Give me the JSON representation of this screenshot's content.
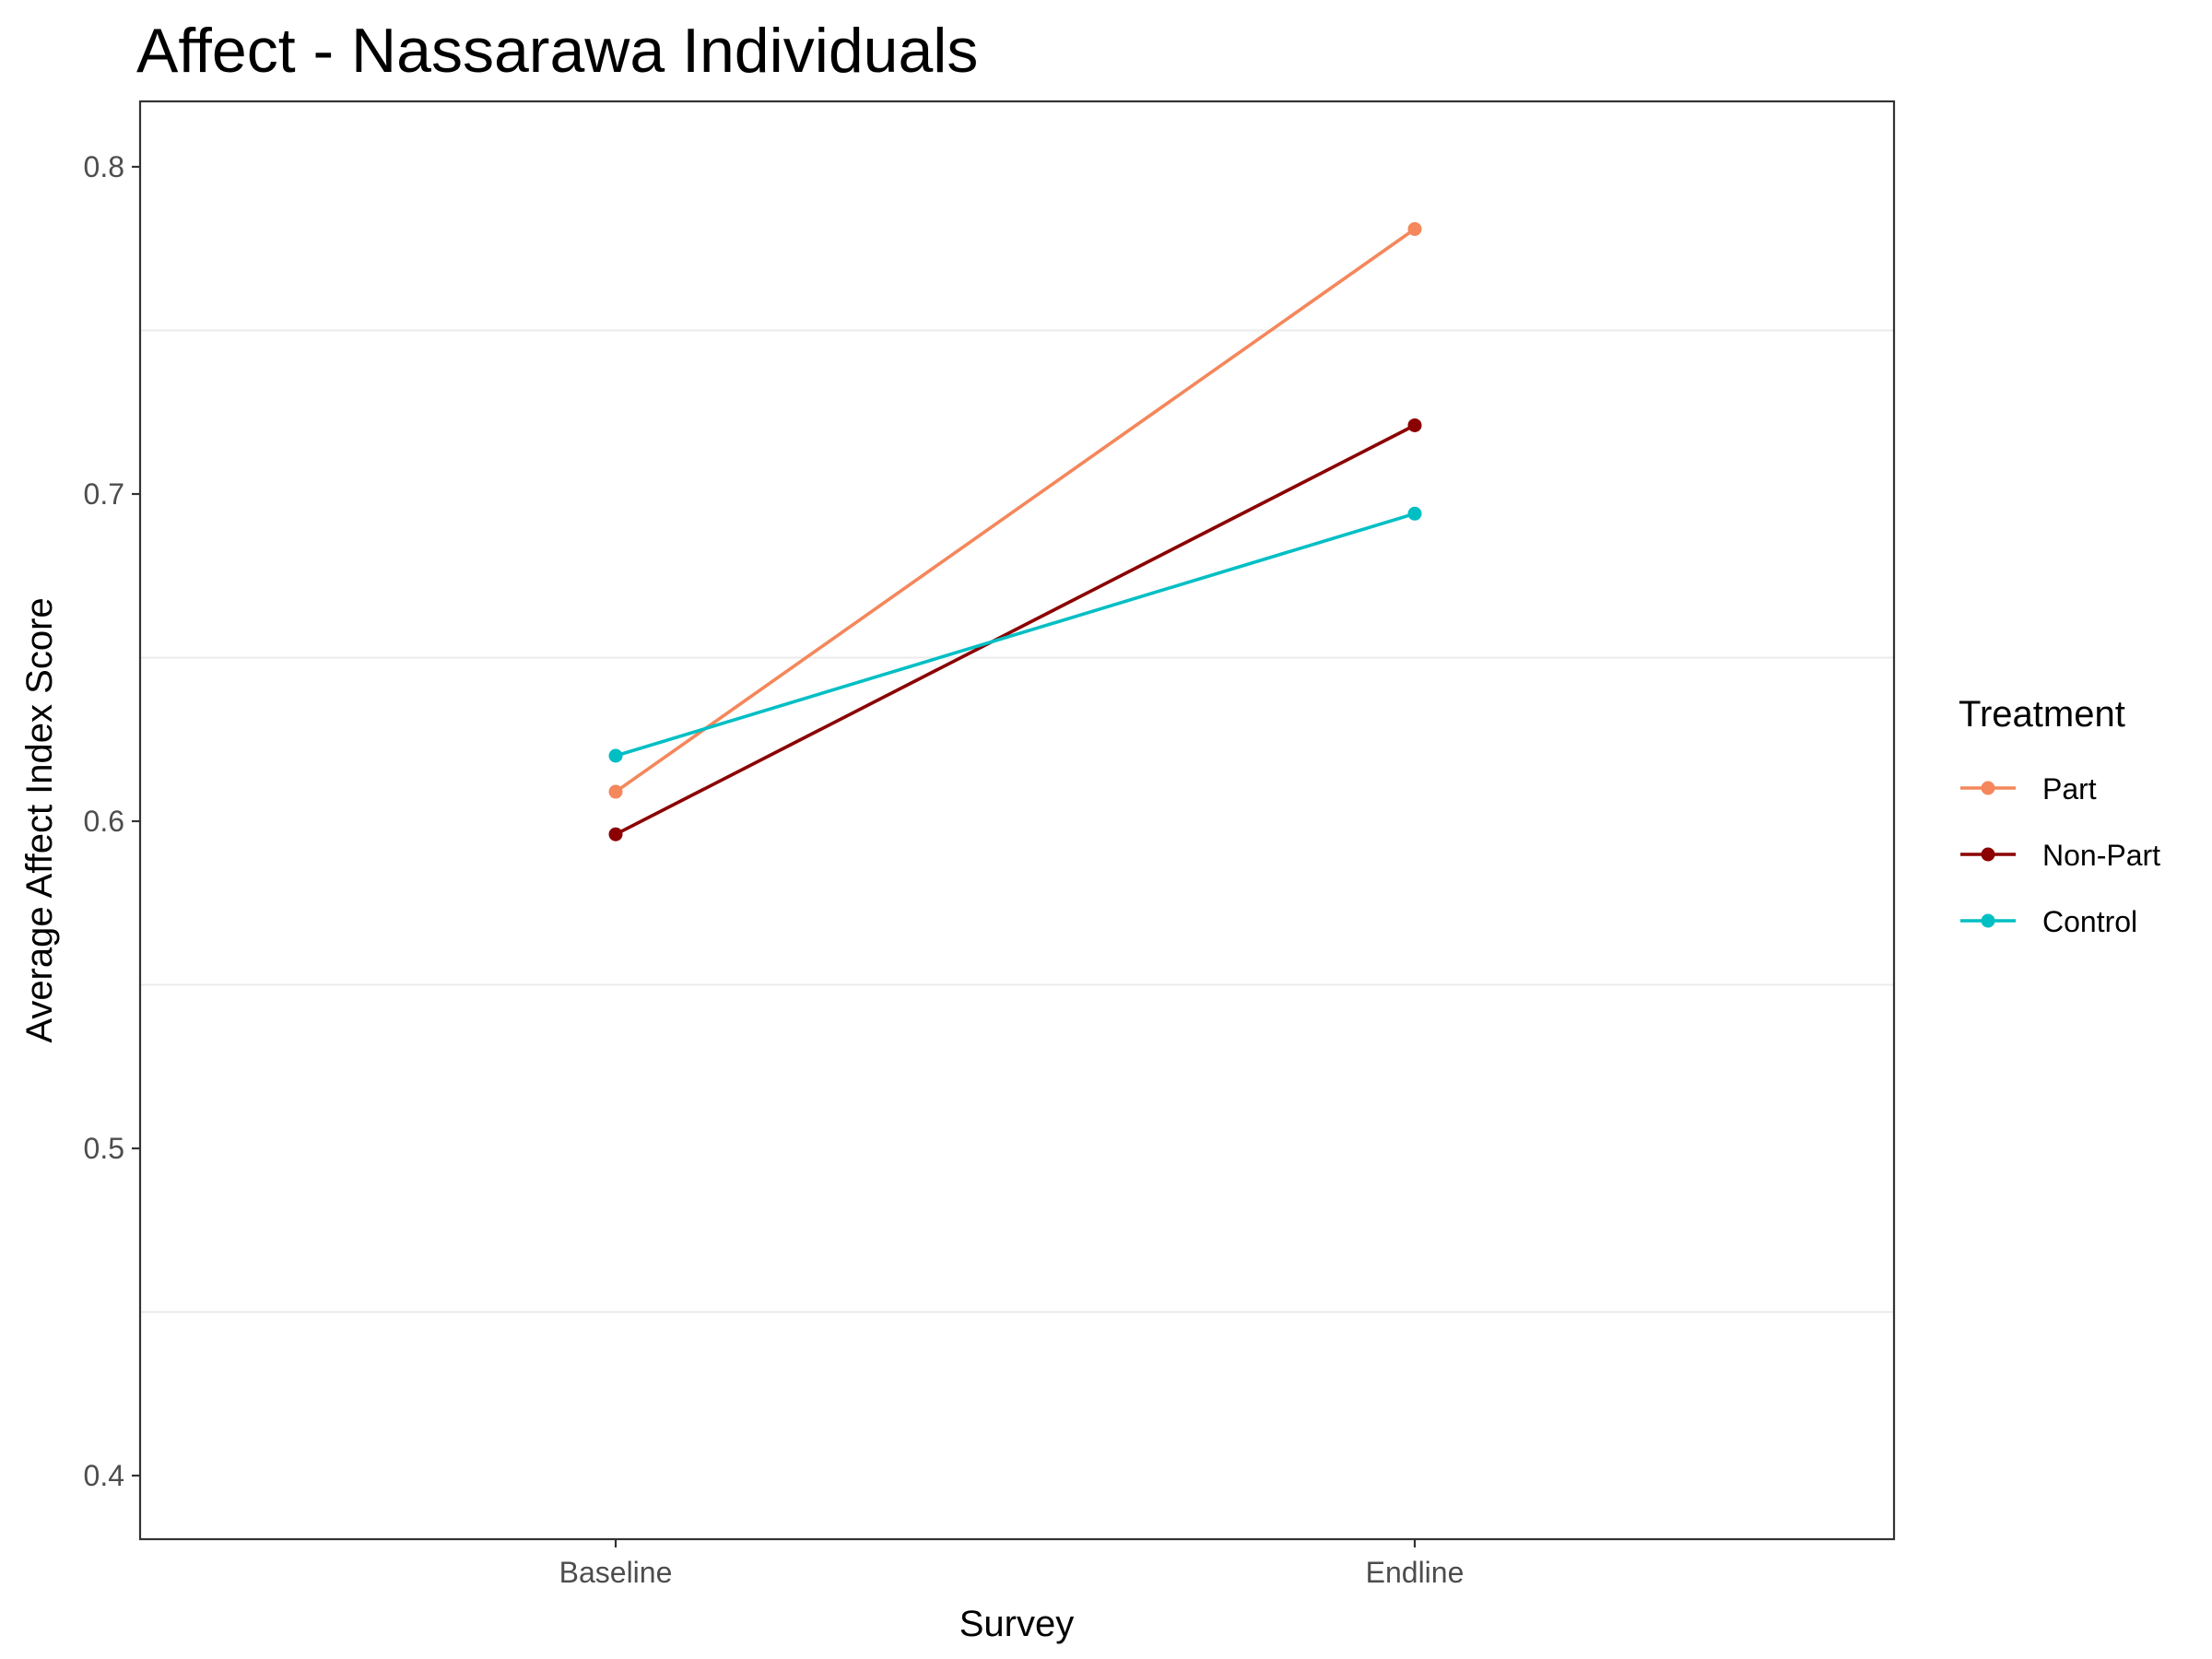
{
  "chart_data": {
    "type": "line",
    "title": "Affect - Nassarawa Individuals",
    "xlabel": "Survey",
    "ylabel": "Average Affect Index Score",
    "categories": [
      "Baseline",
      "Endline"
    ],
    "ylim": [
      0.38,
      0.82
    ],
    "yticks": [
      0.4,
      0.5,
      0.6,
      0.7,
      0.8
    ],
    "yticks_labels": [
      "0.4",
      "0.5",
      "0.6",
      "0.7",
      "0.8"
    ],
    "minor_gridlines": [
      0.45,
      0.55,
      0.65,
      0.75
    ],
    "grid": "horizontal minor only",
    "legend": {
      "title": "Treatment",
      "placement": "right"
    },
    "series": [
      {
        "name": "Part",
        "color": "#F4875B",
        "values": [
          0.609,
          0.781
        ]
      },
      {
        "name": "Non-Part",
        "color": "#8B0000",
        "values": [
          0.596,
          0.721
        ]
      },
      {
        "name": "Control",
        "color": "#00BFC4",
        "values": [
          0.62,
          0.694
        ]
      }
    ]
  }
}
